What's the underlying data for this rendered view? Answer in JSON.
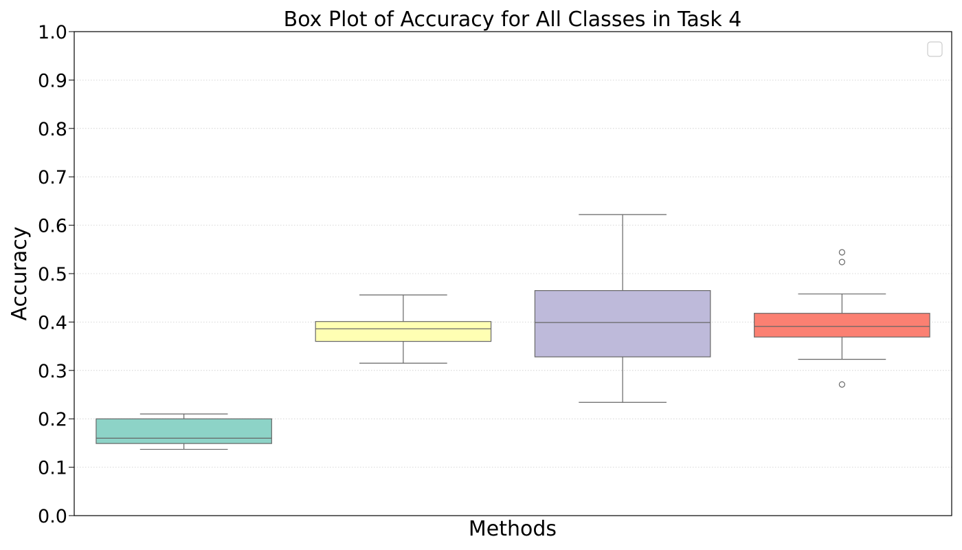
{
  "chart_data": {
    "type": "box",
    "title": "Box Plot of Accuracy for All Classes in Task 4",
    "xlabel": "Methods",
    "ylabel": "Accuracy",
    "ylim": [
      0.0,
      1.0
    ],
    "yticks": [
      0.0,
      0.1,
      0.2,
      0.3,
      0.4,
      0.5,
      0.6,
      0.7,
      0.8,
      0.9,
      1.0
    ],
    "ytick_labels": [
      "0.0",
      "0.1",
      "0.2",
      "0.3",
      "0.4",
      "0.5",
      "0.6",
      "0.7",
      "0.8",
      "0.9",
      "1.0"
    ],
    "grid": "horizontal-dotted",
    "legend": {
      "placement": "top-right",
      "entries": []
    },
    "series": [
      {
        "color": "#8dd3c7",
        "whisker_low": 0.137,
        "q1": 0.149,
        "median": 0.16,
        "q3": 0.2,
        "whisker_high": 0.21,
        "outliers": []
      },
      {
        "color": "#ffffb3",
        "whisker_low": 0.315,
        "q1": 0.36,
        "median": 0.386,
        "q3": 0.401,
        "whisker_high": 0.456,
        "outliers": []
      },
      {
        "color": "#bebada",
        "whisker_low": 0.234,
        "q1": 0.328,
        "median": 0.399,
        "q3": 0.465,
        "whisker_high": 0.622,
        "outliers": []
      },
      {
        "color": "#fb8072",
        "whisker_low": 0.323,
        "q1": 0.369,
        "median": 0.391,
        "q3": 0.418,
        "whisker_high": 0.458,
        "outliers": [
          0.271,
          0.524,
          0.544
        ]
      }
    ],
    "colors": {
      "edge": "#666666",
      "grid": "#cccccc",
      "axis": "#000000"
    }
  }
}
